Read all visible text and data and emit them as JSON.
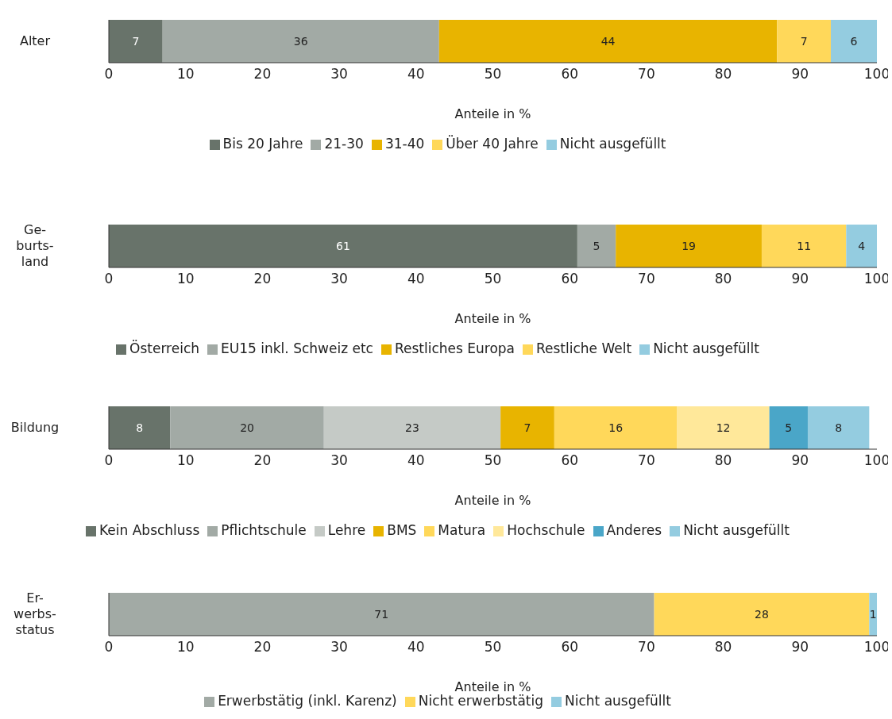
{
  "chart_data": [
    {
      "type": "bar",
      "orientation": "horizontal",
      "stacked": true,
      "categories": [
        "Alter"
      ],
      "xlabel": "Anteile in %",
      "xlim": [
        0,
        100
      ],
      "xticks": [
        0,
        10,
        20,
        30,
        40,
        50,
        60,
        70,
        80,
        90,
        100
      ],
      "data_labels": true,
      "legend": "bottom",
      "series": [
        {
          "name": "Bis 20 Jahre",
          "color": "#68736a",
          "values": [
            7
          ]
        },
        {
          "name": "21-30",
          "color": "#a2aaa5",
          "values": [
            36
          ]
        },
        {
          "name": "31-40",
          "color": "#e8b400",
          "values": [
            44
          ]
        },
        {
          "name": "Über 40 Jahre",
          "color": "#ffd85a",
          "values": [
            7
          ]
        },
        {
          "name": "Nicht ausgefüllt",
          "color": "#94cce0",
          "values": [
            6
          ]
        }
      ]
    },
    {
      "type": "bar",
      "orientation": "horizontal",
      "stacked": true,
      "categories": [
        "Ge-burts-land"
      ],
      "xlabel": "Anteile in %",
      "xlim": [
        0,
        100
      ],
      "xticks": [
        0,
        10,
        20,
        30,
        40,
        50,
        60,
        70,
        80,
        90,
        100
      ],
      "data_labels": true,
      "legend": "bottom",
      "series": [
        {
          "name": "Österreich",
          "color": "#68736a",
          "values": [
            61
          ]
        },
        {
          "name": "EU15 inkl. Schweiz etc",
          "color": "#a2aaa5",
          "values": [
            5
          ]
        },
        {
          "name": "Restliches Europa",
          "color": "#e8b400",
          "values": [
            19
          ]
        },
        {
          "name": "Restliche Welt",
          "color": "#ffd85a",
          "values": [
            11
          ]
        },
        {
          "name": "Nicht ausgefüllt",
          "color": "#94cce0",
          "values": [
            4
          ]
        }
      ]
    },
    {
      "type": "bar",
      "orientation": "horizontal",
      "stacked": true,
      "categories": [
        "Bildung"
      ],
      "xlabel": "Anteile in %",
      "xlim": [
        0,
        100
      ],
      "xticks": [
        0,
        10,
        20,
        30,
        40,
        50,
        60,
        70,
        80,
        90,
        100
      ],
      "data_labels": true,
      "legend": "bottom",
      "series": [
        {
          "name": "Kein Abschluss",
          "color": "#68736a",
          "values": [
            8
          ]
        },
        {
          "name": "Pflichtschule",
          "color": "#a2aaa5",
          "values": [
            20
          ]
        },
        {
          "name": "Lehre",
          "color": "#c5cac6",
          "values": [
            23
          ]
        },
        {
          "name": "BMS",
          "color": "#e8b400",
          "values": [
            7
          ]
        },
        {
          "name": "Matura",
          "color": "#ffd85a",
          "values": [
            16
          ]
        },
        {
          "name": "Hochschule",
          "color": "#ffe89a",
          "values": [
            12
          ]
        },
        {
          "name": "Anderes",
          "color": "#4aa6c8",
          "values": [
            5
          ]
        },
        {
          "name": "Nicht ausgefüllt",
          "color": "#94cce0",
          "values": [
            8
          ]
        }
      ]
    },
    {
      "type": "bar",
      "orientation": "horizontal",
      "stacked": true,
      "categories": [
        "Er-werbs-status"
      ],
      "xlabel": "Anteile in %",
      "xlim": [
        0,
        100
      ],
      "xticks": [
        0,
        10,
        20,
        30,
        40,
        50,
        60,
        70,
        80,
        90,
        100
      ],
      "data_labels": true,
      "legend": "bottom",
      "series": [
        {
          "name": "Erwerbstätig (inkl. Karenz)",
          "color": "#a2aaa5",
          "values": [
            71
          ]
        },
        {
          "name": "Nicht erwerbstätig",
          "color": "#ffd85a",
          "values": [
            28
          ]
        },
        {
          "name": "Nicht ausgefüllt",
          "color": "#94cce0",
          "values": [
            1
          ]
        }
      ]
    }
  ]
}
